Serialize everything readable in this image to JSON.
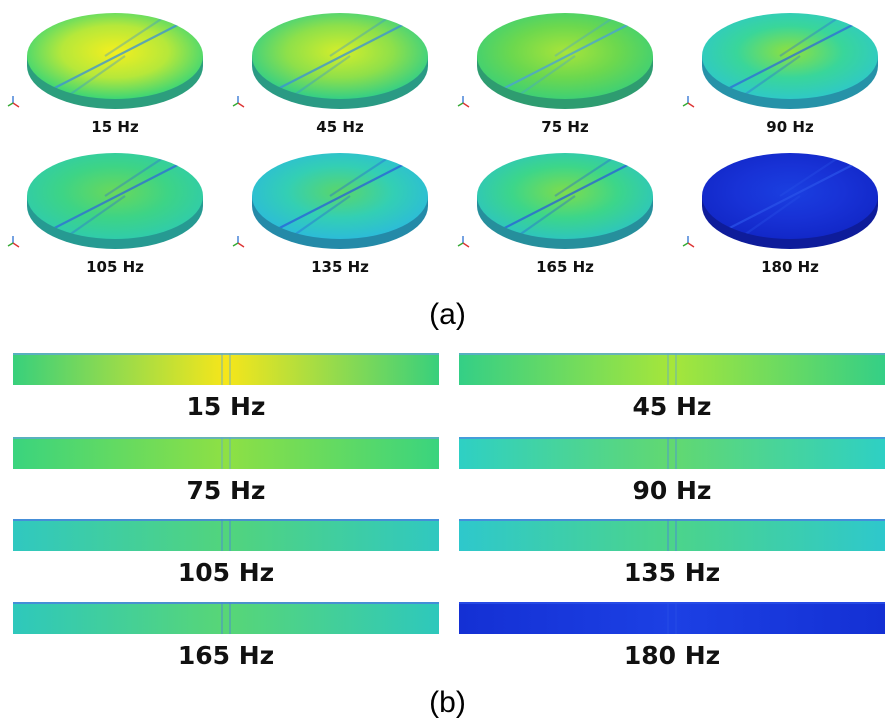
{
  "panel_a": {
    "caption": "(a)",
    "disks": [
      {
        "label": "15 Hz",
        "colors": {
          "center": "#f4ef1e",
          "mid": "#b6e83a",
          "edge": "#3cd676",
          "rim": "#2c9e7d",
          "line": "#3a8fd8"
        }
      },
      {
        "label": "45 Hz",
        "colors": {
          "center": "#d4ee2a",
          "mid": "#8ee04a",
          "edge": "#34cf86",
          "rim": "#2a9a84",
          "line": "#3a8fd8"
        }
      },
      {
        "label": "75 Hz",
        "colors": {
          "center": "#a8e43a",
          "mid": "#6cd84e",
          "edge": "#3fd074",
          "rim": "#2e9c70",
          "line": "#4aa0d8"
        }
      },
      {
        "label": "90 Hz",
        "colors": {
          "center": "#8fe03e",
          "mid": "#39d69a",
          "edge": "#2fc9c6",
          "rim": "#2692a8",
          "line": "#2f6ad8"
        }
      },
      {
        "label": "105 Hz",
        "colors": {
          "center": "#6ad85a",
          "mid": "#3dd486",
          "edge": "#30ccaa",
          "rim": "#269a92",
          "line": "#2f6ad8"
        }
      },
      {
        "label": "135 Hz",
        "colors": {
          "center": "#5ad66a",
          "mid": "#33cfb4",
          "edge": "#2cbcd8",
          "rim": "#248aa8",
          "line": "#2a5ed8"
        }
      },
      {
        "label": "165 Hz",
        "colors": {
          "center": "#7edc4c",
          "mid": "#3cd68a",
          "edge": "#2ec6bc",
          "rim": "#268f9c",
          "line": "#2a5ed8"
        }
      },
      {
        "label": "180 Hz",
        "colors": {
          "center": "#1a3fe0",
          "mid": "#1832d6",
          "edge": "#1228c8",
          "rim": "#0e1c9a",
          "line": "#2a52e8"
        }
      }
    ]
  },
  "panel_b": {
    "caption": "(b)",
    "strips": [
      {
        "label": "15 Hz",
        "colors": {
          "center": "#f6e61a",
          "edge": "#38d07c",
          "top": "#5fa8d0"
        }
      },
      {
        "label": "45 Hz",
        "colors": {
          "center": "#a6e63a",
          "edge": "#34cf86",
          "top": "#5fa8d0"
        }
      },
      {
        "label": "75 Hz",
        "colors": {
          "center": "#8ee044",
          "edge": "#3ad47e",
          "top": "#5fa8d0"
        }
      },
      {
        "label": "90 Hz",
        "colors": {
          "center": "#62d870",
          "edge": "#2ed0c4",
          "top": "#4a90e0"
        }
      },
      {
        "label": "105 Hz",
        "colors": {
          "center": "#52d47c",
          "edge": "#30c8c0",
          "top": "#4a80e0"
        }
      },
      {
        "label": "135 Hz",
        "colors": {
          "center": "#4cd48a",
          "edge": "#2ec8cc",
          "top": "#4a80e0"
        }
      },
      {
        "label": "165 Hz",
        "colors": {
          "center": "#58d676",
          "edge": "#2ec8bc",
          "top": "#4a80e0"
        }
      },
      {
        "label": "180 Hz",
        "colors": {
          "center": "#1c40e4",
          "edge": "#1430d4",
          "top": "#2a50e8"
        }
      }
    ]
  }
}
